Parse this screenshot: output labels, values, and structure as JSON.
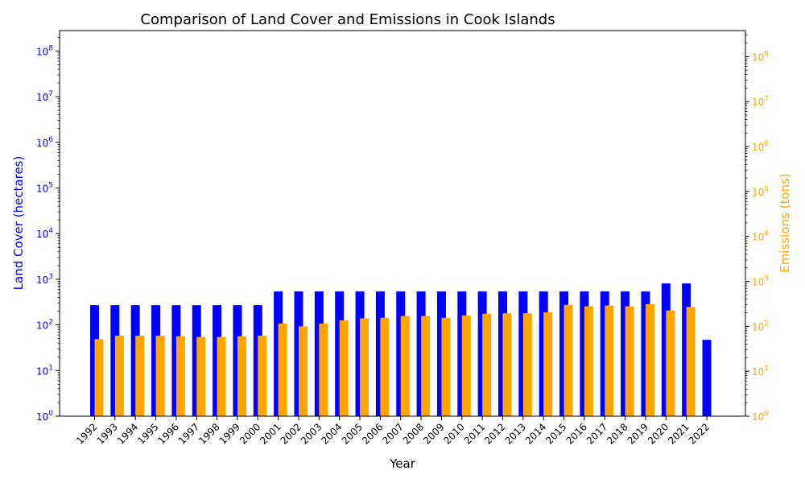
{
  "chart_data": {
    "type": "bar",
    "title": "Comparison of Land Cover and Emissions in Cook Islands",
    "xlabel": "Year",
    "categories": [
      "1992",
      "1993",
      "1994",
      "1995",
      "1996",
      "1997",
      "1998",
      "1999",
      "2000",
      "2001",
      "2002",
      "2003",
      "2004",
      "2005",
      "2006",
      "2007",
      "2008",
      "2009",
      "2010",
      "2011",
      "2012",
      "2013",
      "2014",
      "2015",
      "2016",
      "2017",
      "2018",
      "2019",
      "2020",
      "2021",
      "2022"
    ],
    "left_axis": {
      "label": "Land Cover (hectares)",
      "scale": "log",
      "range": [
        1,
        280000000
      ],
      "color": "#0000ff",
      "ticks": [
        "10^0",
        "10^1",
        "10^2",
        "10^3",
        "10^4",
        "10^5",
        "10^6",
        "10^7",
        "10^8"
      ]
    },
    "right_axis": {
      "label": "Emissions (tons)",
      "scale": "log",
      "range": [
        1,
        380000000
      ],
      "color": "#ffa500",
      "ticks": [
        "10^0",
        "10^1",
        "10^2",
        "10^3",
        "10^4",
        "10^5",
        "10^6",
        "10^7",
        "10^8"
      ]
    },
    "series": [
      {
        "name": "",
        "axis": "left",
        "color": "#0000ff",
        "values": [
          270,
          270,
          270,
          270,
          270,
          270,
          270,
          270,
          270,
          540,
          540,
          540,
          540,
          540,
          540,
          540,
          540,
          540,
          540,
          540,
          540,
          540,
          540,
          540,
          540,
          540,
          540,
          540,
          810,
          810,
          47
        ]
      },
      {
        "name": "",
        "axis": "right",
        "color": "#ffa500",
        "values": [
          52,
          62,
          62,
          62,
          60,
          58,
          58,
          60,
          62,
          115,
          100,
          115,
          135,
          150,
          155,
          170,
          170,
          155,
          175,
          190,
          195,
          195,
          205,
          300,
          280,
          290,
          280,
          310,
          225,
          270,
          null
        ]
      }
    ],
    "grid": false,
    "legend": "none"
  }
}
